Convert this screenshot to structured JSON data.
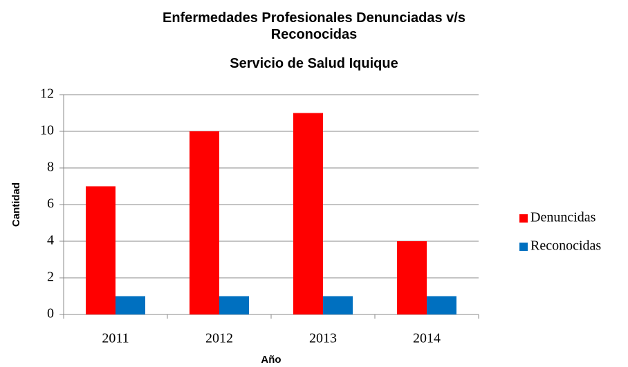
{
  "chart_data": {
    "type": "bar",
    "title": "Enfermedades Profesionales Denunciadas v/s Reconocidas",
    "subtitle": "Servicio de Salud Iquique",
    "x_label": "Año",
    "y_label": "Cantidad",
    "categories": [
      "2011",
      "2012",
      "2013",
      "2014"
    ],
    "series": [
      {
        "name": "Denuncidas",
        "color": "#ff0000",
        "values": [
          7,
          10,
          11,
          4
        ]
      },
      {
        "name": "Reconocidas",
        "color": "#0070c0",
        "values": [
          1,
          1,
          1,
          1
        ]
      }
    ],
    "ylim": [
      0,
      12
    ],
    "yticks": [
      0,
      2,
      4,
      6,
      8,
      10,
      12
    ],
    "grid": true,
    "legend": "right"
  }
}
